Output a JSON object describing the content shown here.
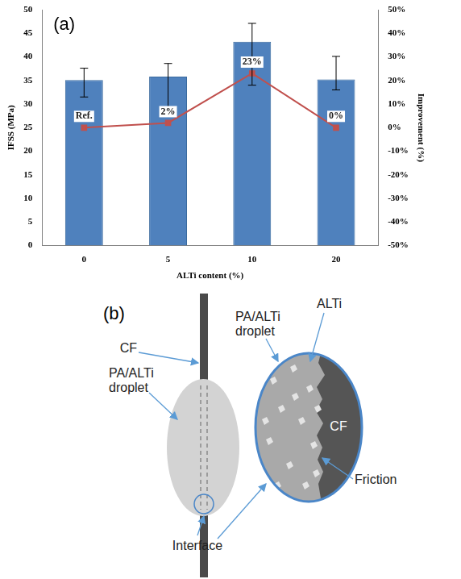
{
  "chart_data": {
    "type": "bar",
    "panel_label": "(a)",
    "categories": [
      "0",
      "5",
      "10",
      "20"
    ],
    "x_label": "ALTi content (%)",
    "y_label": "IFSS (MPa)",
    "y2_label": "Improvement (%)",
    "ylim": [
      0,
      50
    ],
    "yticks": [
      0,
      5,
      10,
      15,
      20,
      25,
      30,
      35,
      40,
      45,
      50
    ],
    "y2lim": [
      -50,
      50
    ],
    "y2ticks": [
      {
        "value": -50,
        "label": "-50%"
      },
      {
        "value": -40,
        "label": "-40%"
      },
      {
        "value": -30,
        "label": "-30%"
      },
      {
        "value": -20,
        "label": "-20%"
      },
      {
        "value": -10,
        "label": "-10%"
      },
      {
        "value": 0,
        "label": "0%"
      },
      {
        "value": 10,
        "label": "10%"
      },
      {
        "value": 20,
        "label": "20%"
      },
      {
        "value": 30,
        "label": "30%"
      },
      {
        "value": 40,
        "label": "40%"
      },
      {
        "value": 50,
        "label": "50%"
      }
    ],
    "grid": false,
    "series": [
      {
        "type": "bar",
        "color": "#4f81bd",
        "values": [
          35.1,
          35.8,
          43.2,
          35.2
        ],
        "error_low": [
          31.5,
          29.0,
          34.0,
          33.0
        ],
        "error_high": [
          37.6,
          38.6,
          47.1,
          40.1
        ]
      },
      {
        "type": "line",
        "axis": "y2",
        "color": "#c0504d",
        "marker": "square",
        "data_labels": true,
        "values": [
          0,
          2,
          23,
          0
        ],
        "value_labels": [
          "Ref.",
          "2%",
          "23%",
          "0%"
        ]
      }
    ]
  },
  "diagram": {
    "panel_label": "(b)",
    "labels": {
      "fiber": "CF",
      "droplet": "PA/ALTi droplet",
      "droplet_detail": "PA/ALTi droplet",
      "particles": "ALTi",
      "fiber_detail": "CF",
      "friction": "Friction",
      "interface": "Interface"
    }
  }
}
